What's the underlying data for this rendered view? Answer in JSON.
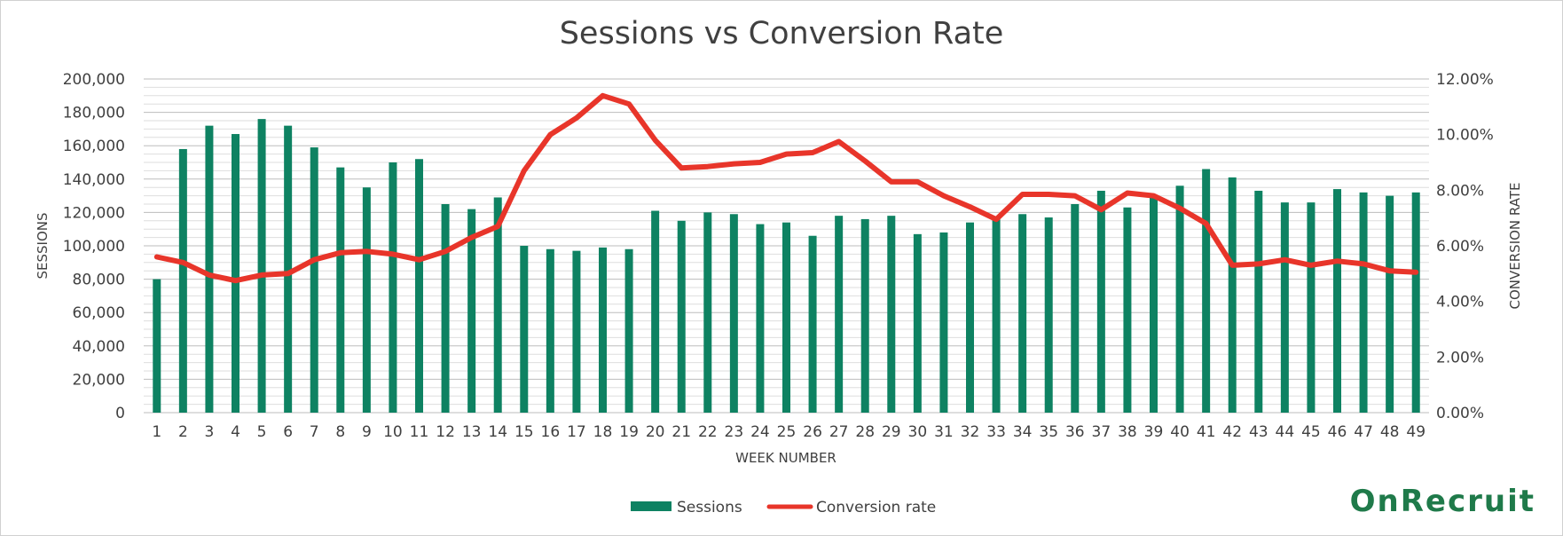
{
  "chart_data": {
    "type": "bar+line",
    "title": "Sessions vs Conversion Rate",
    "xlabel": "WEEK NUMBER",
    "ylabel_left": "SESSIONS",
    "ylabel_right": "CONVERSION RATE",
    "ylim_left": [
      0,
      200000
    ],
    "ylim_right": [
      0,
      12
    ],
    "yticks_left": [
      "0",
      "20,000",
      "40,000",
      "60,000",
      "80,000",
      "100,000",
      "120,000",
      "140,000",
      "160,000",
      "180,000",
      "200,000"
    ],
    "yticks_right": [
      "0.00%",
      "2.00%",
      "4.00%",
      "6.00%",
      "8.00%",
      "10.00%",
      "12.00%"
    ],
    "grid": true,
    "legend_position": "bottom",
    "categories": [
      "1",
      "2",
      "3",
      "4",
      "5",
      "6",
      "7",
      "8",
      "9",
      "10",
      "11",
      "12",
      "13",
      "14",
      "15",
      "16",
      "17",
      "18",
      "19",
      "20",
      "21",
      "22",
      "23",
      "24",
      "25",
      "26",
      "27",
      "28",
      "29",
      "30",
      "31",
      "32",
      "33",
      "34",
      "35",
      "36",
      "37",
      "38",
      "39",
      "40",
      "41",
      "42",
      "43",
      "44",
      "45",
      "46",
      "47",
      "48",
      "49"
    ],
    "series": [
      {
        "name": "Sessions",
        "type": "bar",
        "axis": "left",
        "color": "#0e8262",
        "values": [
          80000,
          158000,
          172000,
          167000,
          176000,
          172000,
          159000,
          147000,
          135000,
          150000,
          152000,
          125000,
          122000,
          129000,
          100000,
          98000,
          97000,
          99000,
          98000,
          121000,
          115000,
          120000,
          119000,
          113000,
          114000,
          106000,
          118000,
          116000,
          118000,
          107000,
          108000,
          114000,
          116000,
          119000,
          117000,
          125000,
          133000,
          123000,
          130000,
          136000,
          146000,
          141000,
          133000,
          126000,
          126000,
          134000,
          132000,
          130000,
          132000
        ]
      },
      {
        "name": "Conversion rate",
        "type": "line",
        "axis": "right",
        "color": "#e8352a",
        "values": [
          5.6,
          5.4,
          4.95,
          4.75,
          4.95,
          5.0,
          5.5,
          5.75,
          5.8,
          5.7,
          5.5,
          5.8,
          6.3,
          6.7,
          8.7,
          10.0,
          10.6,
          11.4,
          11.1,
          9.8,
          8.8,
          8.85,
          8.95,
          9.0,
          9.3,
          9.35,
          9.75,
          9.05,
          8.3,
          8.3,
          7.8,
          7.4,
          6.95,
          7.85,
          7.85,
          7.8,
          7.3,
          7.9,
          7.8,
          7.35,
          6.8,
          5.3,
          5.35,
          5.5,
          5.3,
          5.45,
          5.35,
          5.1,
          5.05
        ]
      }
    ]
  },
  "legend": {
    "sessions_label": "Sessions",
    "conversion_label": "Conversion rate"
  },
  "logo": {
    "text": "OnRecruit",
    "color": "#1f7a4a"
  }
}
